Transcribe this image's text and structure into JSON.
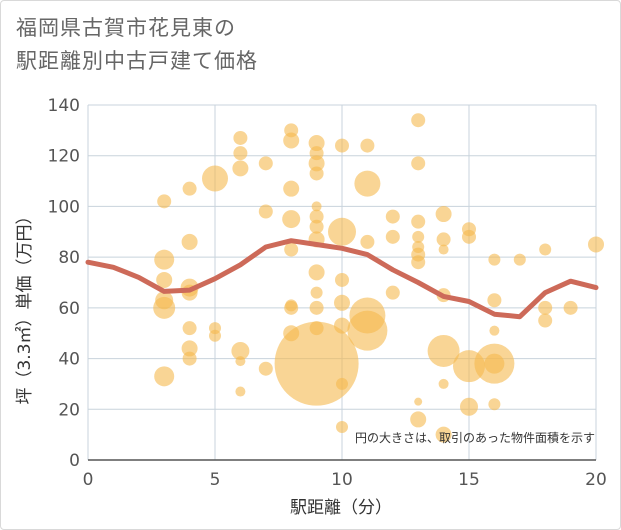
{
  "title_line1": "福岡県古賀市花見東の",
  "title_line2": "駅距離別中古戸建て価格",
  "note": "円の大きさは、取引のあった物件面積を示す",
  "colors": {
    "bubble": "#f5b94e",
    "trend": "#cd6a59",
    "grid": "#c8d3dc",
    "axis": "#555555"
  },
  "chart_data": {
    "type": "scatter",
    "xlabel": "駅距離（分）",
    "ylabel": "坪（3.3㎡）単価（万円）",
    "xlim": [
      0,
      20
    ],
    "ylim": [
      0,
      140
    ],
    "xticks": [
      0,
      5,
      10,
      15,
      20
    ],
    "yticks": [
      0,
      20,
      40,
      60,
      80,
      100,
      120,
      140
    ],
    "grid": true,
    "bubbles": [
      {
        "x": 3,
        "y": 102,
        "r": 7
      },
      {
        "x": 3,
        "y": 79,
        "r": 10
      },
      {
        "x": 3,
        "y": 71,
        "r": 8
      },
      {
        "x": 3,
        "y": 63,
        "r": 9
      },
      {
        "x": 3,
        "y": 60,
        "r": 11
      },
      {
        "x": 3,
        "y": 33,
        "r": 10
      },
      {
        "x": 4,
        "y": 107,
        "r": 7
      },
      {
        "x": 4,
        "y": 86,
        "r": 8
      },
      {
        "x": 4,
        "y": 68,
        "r": 9
      },
      {
        "x": 4,
        "y": 66,
        "r": 8
      },
      {
        "x": 4,
        "y": 52,
        "r": 7
      },
      {
        "x": 4,
        "y": 44,
        "r": 8
      },
      {
        "x": 4,
        "y": 40,
        "r": 7
      },
      {
        "x": 5,
        "y": 111,
        "r": 13
      },
      {
        "x": 5,
        "y": 52,
        "r": 6
      },
      {
        "x": 5,
        "y": 49,
        "r": 6
      },
      {
        "x": 6,
        "y": 127,
        "r": 7
      },
      {
        "x": 6,
        "y": 121,
        "r": 7
      },
      {
        "x": 6,
        "y": 115,
        "r": 8
      },
      {
        "x": 6,
        "y": 43,
        "r": 9
      },
      {
        "x": 6,
        "y": 39,
        "r": 5
      },
      {
        "x": 6,
        "y": 27,
        "r": 5
      },
      {
        "x": 7,
        "y": 117,
        "r": 7
      },
      {
        "x": 7,
        "y": 98,
        "r": 7
      },
      {
        "x": 7,
        "y": 36,
        "r": 7
      },
      {
        "x": 8,
        "y": 130,
        "r": 7
      },
      {
        "x": 8,
        "y": 126,
        "r": 8
      },
      {
        "x": 8,
        "y": 107,
        "r": 8
      },
      {
        "x": 8,
        "y": 95,
        "r": 9
      },
      {
        "x": 8,
        "y": 83,
        "r": 7
      },
      {
        "x": 8,
        "y": 61,
        "r": 6
      },
      {
        "x": 8,
        "y": 60,
        "r": 7
      },
      {
        "x": 8,
        "y": 50,
        "r": 8
      },
      {
        "x": 9,
        "y": 125,
        "r": 8
      },
      {
        "x": 9,
        "y": 121,
        "r": 7
      },
      {
        "x": 9,
        "y": 117,
        "r": 8
      },
      {
        "x": 9,
        "y": 113,
        "r": 7
      },
      {
        "x": 9,
        "y": 100,
        "r": 5
      },
      {
        "x": 9,
        "y": 96,
        "r": 7
      },
      {
        "x": 9,
        "y": 92,
        "r": 7
      },
      {
        "x": 9,
        "y": 87,
        "r": 8
      },
      {
        "x": 9,
        "y": 74,
        "r": 8
      },
      {
        "x": 9,
        "y": 66,
        "r": 6
      },
      {
        "x": 9,
        "y": 60,
        "r": 7
      },
      {
        "x": 9,
        "y": 52,
        "r": 7
      },
      {
        "x": 9,
        "y": 38,
        "r": 42
      },
      {
        "x": 10,
        "y": 124,
        "r": 7
      },
      {
        "x": 10,
        "y": 90,
        "r": 14
      },
      {
        "x": 10,
        "y": 71,
        "r": 7
      },
      {
        "x": 10,
        "y": 62,
        "r": 8
      },
      {
        "x": 10,
        "y": 53,
        "r": 8
      },
      {
        "x": 10,
        "y": 30,
        "r": 6
      },
      {
        "x": 10,
        "y": 13,
        "r": 6
      },
      {
        "x": 11,
        "y": 124,
        "r": 7
      },
      {
        "x": 11,
        "y": 109,
        "r": 13
      },
      {
        "x": 11,
        "y": 86,
        "r": 7
      },
      {
        "x": 11,
        "y": 57,
        "r": 18
      },
      {
        "x": 11,
        "y": 51,
        "r": 20
      },
      {
        "x": 12,
        "y": 96,
        "r": 7
      },
      {
        "x": 12,
        "y": 88,
        "r": 7
      },
      {
        "x": 12,
        "y": 66,
        "r": 7
      },
      {
        "x": 13,
        "y": 134,
        "r": 7
      },
      {
        "x": 13,
        "y": 117,
        "r": 7
      },
      {
        "x": 13,
        "y": 94,
        "r": 7
      },
      {
        "x": 13,
        "y": 88,
        "r": 6
      },
      {
        "x": 13,
        "y": 84,
        "r": 6
      },
      {
        "x": 13,
        "y": 81,
        "r": 7
      },
      {
        "x": 13,
        "y": 78,
        "r": 7
      },
      {
        "x": 13,
        "y": 23,
        "r": 4
      },
      {
        "x": 13,
        "y": 16,
        "r": 8
      },
      {
        "x": 14,
        "y": 97,
        "r": 8
      },
      {
        "x": 14,
        "y": 87,
        "r": 7
      },
      {
        "x": 14,
        "y": 83,
        "r": 5
      },
      {
        "x": 14,
        "y": 65,
        "r": 7
      },
      {
        "x": 14,
        "y": 43,
        "r": 16
      },
      {
        "x": 14,
        "y": 30,
        "r": 5
      },
      {
        "x": 14,
        "y": 10,
        "r": 8
      },
      {
        "x": 15,
        "y": 91,
        "r": 7
      },
      {
        "x": 15,
        "y": 88,
        "r": 7
      },
      {
        "x": 15,
        "y": 37,
        "r": 16
      },
      {
        "x": 15,
        "y": 21,
        "r": 9
      },
      {
        "x": 16,
        "y": 79,
        "r": 6
      },
      {
        "x": 16,
        "y": 63,
        "r": 7
      },
      {
        "x": 16,
        "y": 51,
        "r": 5
      },
      {
        "x": 16,
        "y": 38,
        "r": 20
      },
      {
        "x": 16,
        "y": 38,
        "r": 10
      },
      {
        "x": 16,
        "y": 22,
        "r": 6
      },
      {
        "x": 17,
        "y": 79,
        "r": 6
      },
      {
        "x": 18,
        "y": 83,
        "r": 6
      },
      {
        "x": 18,
        "y": 60,
        "r": 7
      },
      {
        "x": 18,
        "y": 55,
        "r": 7
      },
      {
        "x": 19,
        "y": 60,
        "r": 7
      },
      {
        "x": 20,
        "y": 85,
        "r": 8
      }
    ],
    "trend": {
      "x": [
        0,
        1,
        2,
        3,
        4,
        5,
        6,
        7,
        8,
        9,
        10,
        11,
        12,
        13,
        14,
        15,
        16,
        17,
        18,
        19,
        20
      ],
      "y": [
        78,
        76,
        72,
        66.5,
        67,
        71.5,
        77,
        84,
        86.5,
        85,
        83.5,
        81,
        75,
        70,
        64.5,
        62.5,
        57.5,
        56.5,
        66,
        70.5,
        68
      ]
    }
  }
}
